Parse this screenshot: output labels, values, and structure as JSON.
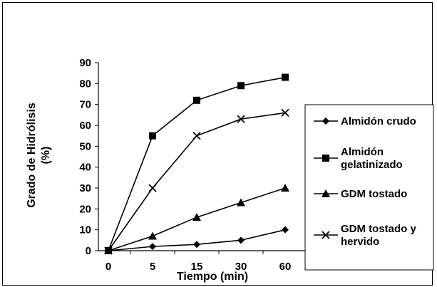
{
  "chart_data": {
    "type": "line",
    "x": [
      "0",
      "5",
      "15",
      "30",
      "60"
    ],
    "xlabel": "Tiempo (min)",
    "ylabel_lines": [
      "Grado de Hidrólisis",
      "(%)"
    ],
    "ylim": [
      0,
      90
    ],
    "yticks": [
      "0",
      "10",
      "20",
      "30",
      "40",
      "50",
      "60",
      "70",
      "80",
      "90"
    ],
    "grid": false,
    "legend_position": "right",
    "series": [
      {
        "name": "Almidón crudo",
        "name_lines": [
          "Almidón crudo"
        ],
        "marker": "diamond",
        "values": [
          0,
          2,
          3,
          5,
          10
        ]
      },
      {
        "name": "Almidón gelatinizado",
        "name_lines": [
          "Almidón",
          "gelatinizado"
        ],
        "marker": "square",
        "values": [
          0,
          55,
          72,
          79,
          83
        ]
      },
      {
        "name": "GDM tostado",
        "name_lines": [
          "GDM tostado"
        ],
        "marker": "triangle",
        "values": [
          0,
          7,
          16,
          23,
          30
        ]
      },
      {
        "name": "GDM tostado y hervido",
        "name_lines": [
          "GDM tostado y",
          "hervido"
        ],
        "marker": "x",
        "values": [
          0,
          30,
          55,
          63,
          66
        ]
      }
    ],
    "colors": {
      "line": "#000000"
    }
  }
}
